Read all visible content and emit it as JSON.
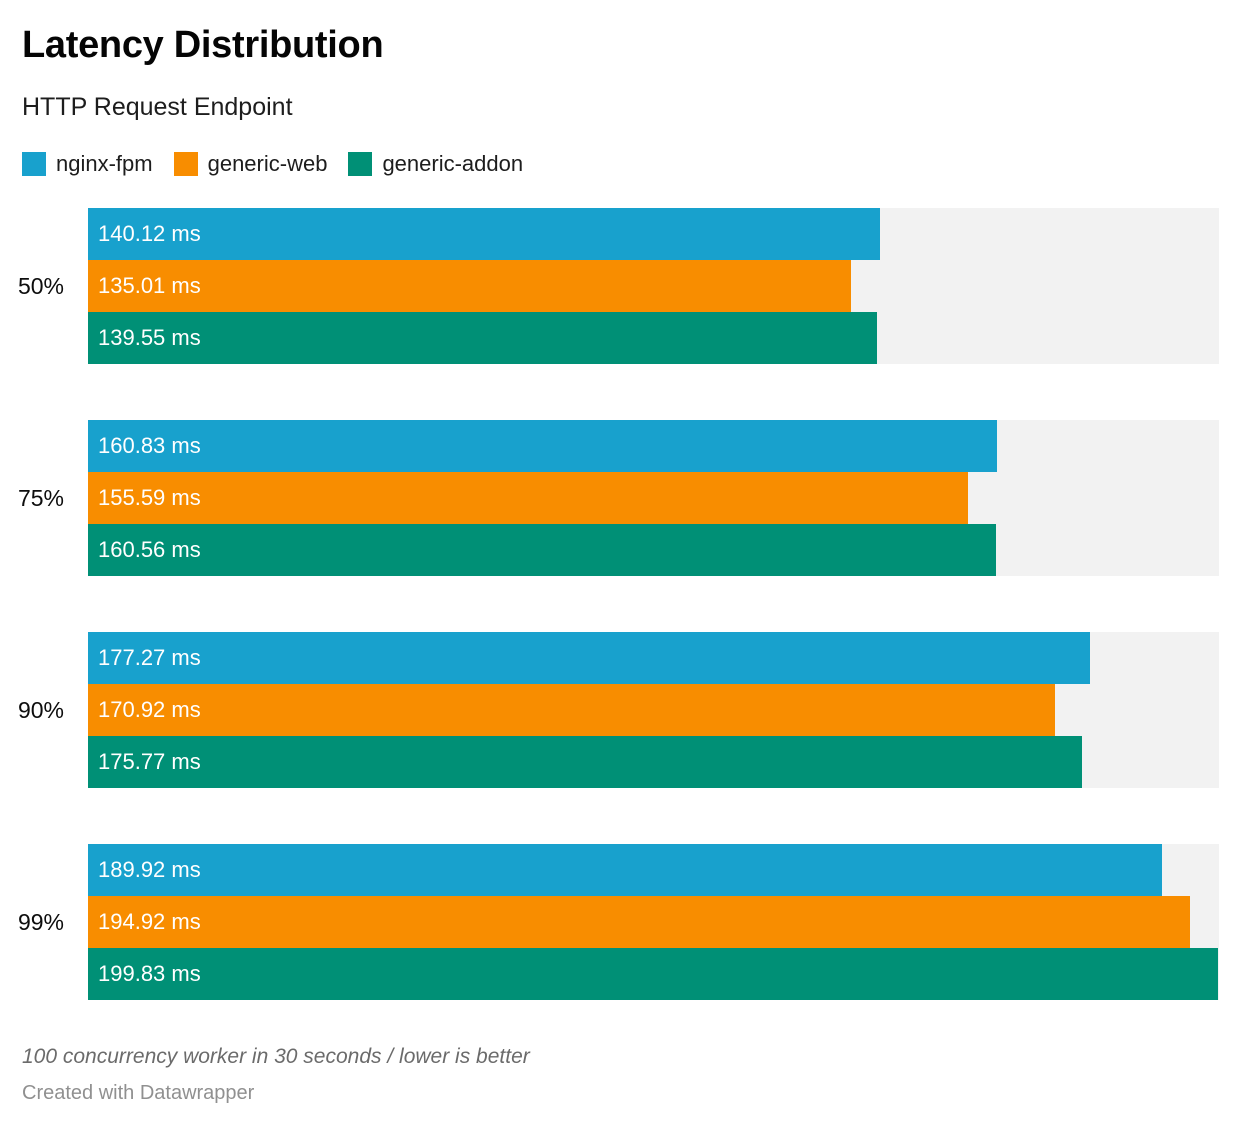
{
  "header": {
    "title": "Latency Distribution",
    "subtitle": "HTTP Request Endpoint"
  },
  "chart_data": {
    "type": "bar",
    "orientation": "horizontal",
    "title": "Latency Distribution",
    "subtitle": "HTTP Request Endpoint",
    "categories": [
      "50%",
      "75%",
      "90%",
      "99%"
    ],
    "series": [
      {
        "name": "nginx-fpm",
        "color": "#18a1cd",
        "values": [
          140.12,
          160.83,
          177.27,
          189.92
        ]
      },
      {
        "name": "generic-web",
        "color": "#f88d00",
        "values": [
          135.01,
          155.59,
          170.92,
          194.92
        ]
      },
      {
        "name": "generic-addon",
        "color": "#009076",
        "values": [
          139.55,
          160.56,
          175.77,
          199.83
        ]
      }
    ],
    "value_suffix": " ms",
    "xlabel": "",
    "ylabel": "",
    "xlim": [
      0,
      200
    ],
    "grid": false,
    "legend_position": "top",
    "track_color": "#f2f2f2",
    "bar_label_color": "#ffffff"
  },
  "footer": {
    "note": "100 concurrency worker in 30 seconds / lower is better",
    "attribution": "Created with Datawrapper"
  }
}
